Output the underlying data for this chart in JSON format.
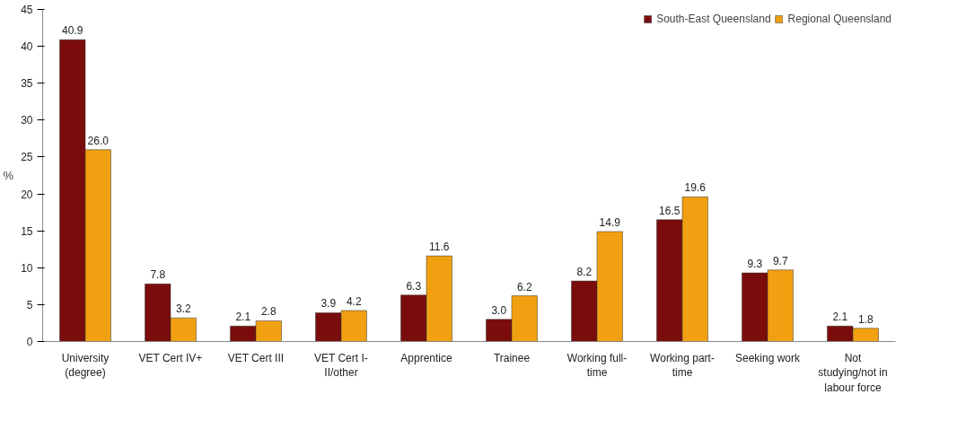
{
  "chart_data": {
    "type": "bar",
    "ylabel": "%",
    "categories": [
      "University\n(degree)",
      "VET Cert IV+",
      "VET Cert III",
      "VET Cert I-\nII/other",
      "Apprentice",
      "Trainee",
      "Working full-\ntime",
      "Working part-\ntime",
      "Seeking work",
      "Not\nstudying/not in\nlabour force"
    ],
    "series": [
      {
        "name": "South-East Queensland",
        "color": "#7a0c0c",
        "values": [
          40.9,
          7.8,
          2.1,
          3.9,
          6.3,
          3.0,
          8.2,
          16.5,
          9.3,
          2.1
        ],
        "value_labels": [
          "40.9",
          "7.8",
          "2.1",
          "3.9",
          "6.3",
          "3.0",
          "8.2",
          "16.5",
          "9.3",
          "2.1"
        ]
      },
      {
        "name": "Regional Queensland",
        "color": "#f0a010",
        "values": [
          26.0,
          3.2,
          2.8,
          4.2,
          11.6,
          6.2,
          14.9,
          19.6,
          9.7,
          1.8
        ],
        "value_labels": [
          "26.0",
          "3.2",
          "2.8",
          "4.2",
          "11.6",
          "6.2",
          "14.9",
          "19.6",
          "9.7",
          "1.8"
        ]
      }
    ],
    "ylim": [
      0,
      45
    ],
    "yticks": [
      0,
      5,
      10,
      15,
      20,
      25,
      30,
      35,
      40,
      45
    ],
    "grid": false,
    "legend": "top right"
  }
}
